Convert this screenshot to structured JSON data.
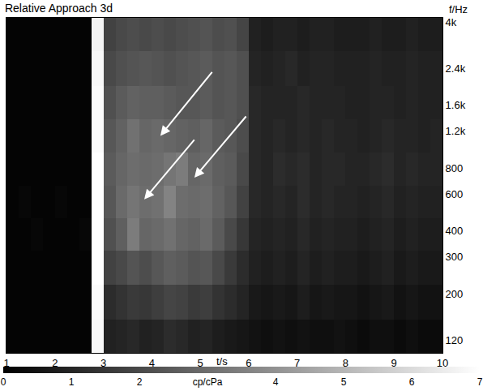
{
  "chart_data": {
    "type": "heatmap",
    "title": "Relative Approach 3d",
    "xlabel": "t/s",
    "ylabel": "f/Hz",
    "log": "y",
    "grid": false,
    "xlim": [
      1,
      10
    ],
    "xticks": [
      1,
      2,
      3,
      4,
      5,
      6,
      7,
      8,
      9,
      10
    ],
    "ylim": [
      104,
      4200
    ],
    "yticks": [
      120,
      200,
      300,
      400,
      600,
      800,
      {
        "value": 1200,
        "label": "1.2k"
      },
      {
        "value": 1600,
        "label": "1.6k"
      },
      {
        "value": 2400,
        "label": "2.4k"
      },
      {
        "value": 4000,
        "label": "4k"
      }
    ],
    "x_bins": [
      1.0,
      1.25,
      1.5,
      1.75,
      2.0,
      2.25,
      2.5,
      2.75,
      3.0,
      3.25,
      3.5,
      3.75,
      4.0,
      4.25,
      4.5,
      4.75,
      5.0,
      5.25,
      5.5,
      5.75,
      6.0,
      6.25,
      6.5,
      6.75,
      7.0,
      7.25,
      7.5,
      7.75,
      8.0,
      8.25,
      8.5,
      8.75,
      9.0,
      9.25,
      9.5,
      9.75,
      10.0
    ],
    "y_bins": [
      104,
      150,
      220,
      320,
      460,
      660,
      950,
      1370,
      1980,
      2900,
      4200
    ],
    "values": [
      [
        0.1,
        0.1,
        0.1,
        0.1,
        0.1,
        0.1,
        0.1,
        6.8,
        0.9,
        1.0,
        1.1,
        0.9,
        1.0,
        1.2,
        1.1,
        0.9,
        1.0,
        0.8,
        0.7,
        0.6,
        0.5,
        0.4,
        0.5,
        0.4,
        0.5,
        0.4,
        0.4,
        0.5,
        0.4,
        0.3,
        0.4,
        0.4,
        0.3,
        0.4,
        0.3,
        0.3
      ],
      [
        0.1,
        0.1,
        0.1,
        0.1,
        0.1,
        0.1,
        0.1,
        6.9,
        1.2,
        1.4,
        1.6,
        1.5,
        1.7,
        1.9,
        1.8,
        1.6,
        1.7,
        1.4,
        1.2,
        1.0,
        0.7,
        0.6,
        0.7,
        0.6,
        0.8,
        0.6,
        0.7,
        0.6,
        0.6,
        0.5,
        0.6,
        0.7,
        0.5,
        0.6,
        0.5,
        0.5
      ],
      [
        0.1,
        0.1,
        0.1,
        0.1,
        0.1,
        0.1,
        0.1,
        7.0,
        1.8,
        2.0,
        2.3,
        2.1,
        2.4,
        2.6,
        2.5,
        2.3,
        2.4,
        2.0,
        1.6,
        1.2,
        0.9,
        0.8,
        0.9,
        0.8,
        1.0,
        0.8,
        0.9,
        0.8,
        0.8,
        0.7,
        0.8,
        0.9,
        0.7,
        0.8,
        0.7,
        0.7
      ],
      [
        0.1,
        0.1,
        0.2,
        0.1,
        0.1,
        0.1,
        0.2,
        7.0,
        2.2,
        2.6,
        3.4,
        2.8,
        2.9,
        3.1,
        2.8,
        2.7,
        2.9,
        2.5,
        2.0,
        1.5,
        1.0,
        0.9,
        1.0,
        0.9,
        1.1,
        0.9,
        1.0,
        0.9,
        0.9,
        0.8,
        0.9,
        1.0,
        0.8,
        0.9,
        0.8,
        0.8
      ],
      [
        0.1,
        0.2,
        0.1,
        0.1,
        0.2,
        0.1,
        0.1,
        7.0,
        2.4,
        2.9,
        3.2,
        3.0,
        3.1,
        3.6,
        3.0,
        2.9,
        3.0,
        2.7,
        2.4,
        1.8,
        1.1,
        1.0,
        1.1,
        1.0,
        1.2,
        1.0,
        1.1,
        1.0,
        1.0,
        0.9,
        1.0,
        1.1,
        0.9,
        1.0,
        0.9,
        0.9
      ],
      [
        0.1,
        0.1,
        0.1,
        0.1,
        0.1,
        0.1,
        0.1,
        7.0,
        2.5,
        2.8,
        3.0,
        2.9,
        3.0,
        3.2,
        3.4,
        2.8,
        2.9,
        2.6,
        2.5,
        2.0,
        1.1,
        1.0,
        1.2,
        1.1,
        1.2,
        1.0,
        1.1,
        1.1,
        1.0,
        1.0,
        1.1,
        1.2,
        1.0,
        1.1,
        1.0,
        1.0
      ],
      [
        0.1,
        0.1,
        0.1,
        0.1,
        0.1,
        0.1,
        0.1,
        6.9,
        2.4,
        2.7,
        3.1,
        2.8,
        2.9,
        2.8,
        2.7,
        2.6,
        2.8,
        2.5,
        2.4,
        2.1,
        1.1,
        1.0,
        1.1,
        1.0,
        1.1,
        1.0,
        1.1,
        1.0,
        1.0,
        0.9,
        1.0,
        1.1,
        1.0,
        1.0,
        0.9,
        1.0
      ],
      [
        0.1,
        0.1,
        0.1,
        0.1,
        0.1,
        0.1,
        0.1,
        6.9,
        2.2,
        2.5,
        2.7,
        2.6,
        2.6,
        2.5,
        2.4,
        2.4,
        2.5,
        2.3,
        2.4,
        2.2,
        1.1,
        1.0,
        1.0,
        1.0,
        1.1,
        1.0,
        1.0,
        1.0,
        0.9,
        0.9,
        1.0,
        1.0,
        0.9,
        1.0,
        0.9,
        0.9
      ],
      [
        0.1,
        0.1,
        0.1,
        0.1,
        0.1,
        0.1,
        0.1,
        6.8,
        2.0,
        2.2,
        2.3,
        2.4,
        2.3,
        2.2,
        2.3,
        2.4,
        2.5,
        2.3,
        2.4,
        2.2,
        1.0,
        0.9,
        1.0,
        1.1,
        0.9,
        1.0,
        1.0,
        0.9,
        0.9,
        0.9,
        1.0,
        0.9,
        0.9,
        1.0,
        0.9,
        0.9
      ],
      [
        0.1,
        0.1,
        0.1,
        0.1,
        0.1,
        0.1,
        0.1,
        6.7,
        1.8,
        2.0,
        2.1,
        2.0,
        2.1,
        2.0,
        2.1,
        2.2,
        2.3,
        2.1,
        2.2,
        1.9,
        0.9,
        0.8,
        0.9,
        0.9,
        0.8,
        0.9,
        0.9,
        0.8,
        0.8,
        0.8,
        0.9,
        0.8,
        0.8,
        0.9,
        0.8,
        0.8
      ]
    ],
    "colorbar": {
      "range": [
        0,
        7
      ],
      "ticks": [
        0,
        1,
        2,
        {
          "value": 3,
          "label": "cp/cPa"
        },
        4,
        5,
        6,
        7
      ]
    }
  }
}
